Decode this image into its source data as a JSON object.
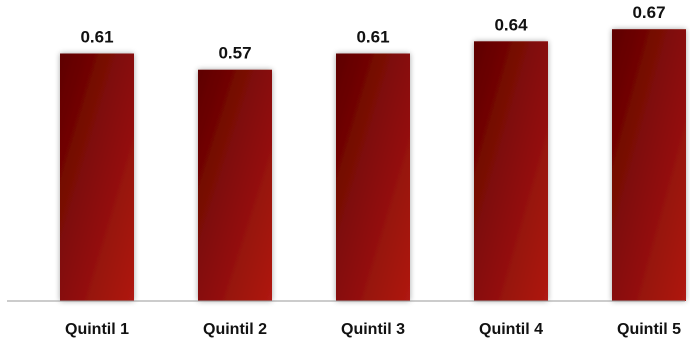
{
  "chart_data": {
    "type": "bar",
    "title": "",
    "xlabel": "",
    "ylabel": "",
    "categories": [
      "Quintil 1",
      "Quintil 2",
      "Quintil 3",
      "Quintil 4",
      "Quintil 5"
    ],
    "values": [
      0.61,
      0.57,
      0.61,
      0.64,
      0.67
    ],
    "value_labels": [
      "0.61",
      "0.57",
      "0.61",
      "0.64",
      "0.67"
    ],
    "ylim": [
      0,
      0.7
    ],
    "grid": false,
    "legend": "none",
    "colors": {
      "bar_dark": "#5e0000",
      "bar_light": "#b01a12",
      "axis": "#999999"
    }
  }
}
